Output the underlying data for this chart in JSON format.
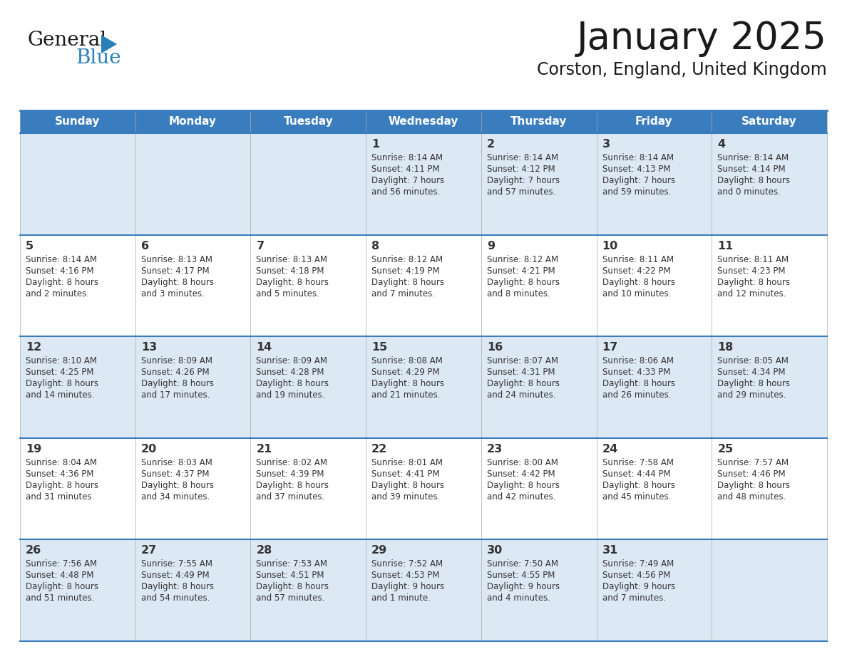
{
  "title": "January 2025",
  "subtitle": "Corston, England, United Kingdom",
  "header_bg_color": "#3a7dbf",
  "header_text_color": "#ffffff",
  "cell_bg_alt": "#dde8f5",
  "cell_bg_norm": "#ffffff",
  "border_color": "#3a7dbf",
  "text_color": "#333333",
  "title_color": "#1a1a1a",
  "logo_general_color": "#1a1a1a",
  "logo_blue_color": "#2980b9",
  "logo_triangle_color": "#2980b9",
  "day_names": [
    "Sunday",
    "Monday",
    "Tuesday",
    "Wednesday",
    "Thursday",
    "Friday",
    "Saturday"
  ],
  "weeks": [
    [
      {
        "day": "",
        "info": ""
      },
      {
        "day": "",
        "info": ""
      },
      {
        "day": "",
        "info": ""
      },
      {
        "day": "1",
        "info": "Sunrise: 8:14 AM\nSunset: 4:11 PM\nDaylight: 7 hours\nand 56 minutes."
      },
      {
        "day": "2",
        "info": "Sunrise: 8:14 AM\nSunset: 4:12 PM\nDaylight: 7 hours\nand 57 minutes."
      },
      {
        "day": "3",
        "info": "Sunrise: 8:14 AM\nSunset: 4:13 PM\nDaylight: 7 hours\nand 59 minutes."
      },
      {
        "day": "4",
        "info": "Sunrise: 8:14 AM\nSunset: 4:14 PM\nDaylight: 8 hours\nand 0 minutes."
      }
    ],
    [
      {
        "day": "5",
        "info": "Sunrise: 8:14 AM\nSunset: 4:16 PM\nDaylight: 8 hours\nand 2 minutes."
      },
      {
        "day": "6",
        "info": "Sunrise: 8:13 AM\nSunset: 4:17 PM\nDaylight: 8 hours\nand 3 minutes."
      },
      {
        "day": "7",
        "info": "Sunrise: 8:13 AM\nSunset: 4:18 PM\nDaylight: 8 hours\nand 5 minutes."
      },
      {
        "day": "8",
        "info": "Sunrise: 8:12 AM\nSunset: 4:19 PM\nDaylight: 8 hours\nand 7 minutes."
      },
      {
        "day": "9",
        "info": "Sunrise: 8:12 AM\nSunset: 4:21 PM\nDaylight: 8 hours\nand 8 minutes."
      },
      {
        "day": "10",
        "info": "Sunrise: 8:11 AM\nSunset: 4:22 PM\nDaylight: 8 hours\nand 10 minutes."
      },
      {
        "day": "11",
        "info": "Sunrise: 8:11 AM\nSunset: 4:23 PM\nDaylight: 8 hours\nand 12 minutes."
      }
    ],
    [
      {
        "day": "12",
        "info": "Sunrise: 8:10 AM\nSunset: 4:25 PM\nDaylight: 8 hours\nand 14 minutes."
      },
      {
        "day": "13",
        "info": "Sunrise: 8:09 AM\nSunset: 4:26 PM\nDaylight: 8 hours\nand 17 minutes."
      },
      {
        "day": "14",
        "info": "Sunrise: 8:09 AM\nSunset: 4:28 PM\nDaylight: 8 hours\nand 19 minutes."
      },
      {
        "day": "15",
        "info": "Sunrise: 8:08 AM\nSunset: 4:29 PM\nDaylight: 8 hours\nand 21 minutes."
      },
      {
        "day": "16",
        "info": "Sunrise: 8:07 AM\nSunset: 4:31 PM\nDaylight: 8 hours\nand 24 minutes."
      },
      {
        "day": "17",
        "info": "Sunrise: 8:06 AM\nSunset: 4:33 PM\nDaylight: 8 hours\nand 26 minutes."
      },
      {
        "day": "18",
        "info": "Sunrise: 8:05 AM\nSunset: 4:34 PM\nDaylight: 8 hours\nand 29 minutes."
      }
    ],
    [
      {
        "day": "19",
        "info": "Sunrise: 8:04 AM\nSunset: 4:36 PM\nDaylight: 8 hours\nand 31 minutes."
      },
      {
        "day": "20",
        "info": "Sunrise: 8:03 AM\nSunset: 4:37 PM\nDaylight: 8 hours\nand 34 minutes."
      },
      {
        "day": "21",
        "info": "Sunrise: 8:02 AM\nSunset: 4:39 PM\nDaylight: 8 hours\nand 37 minutes."
      },
      {
        "day": "22",
        "info": "Sunrise: 8:01 AM\nSunset: 4:41 PM\nDaylight: 8 hours\nand 39 minutes."
      },
      {
        "day": "23",
        "info": "Sunrise: 8:00 AM\nSunset: 4:42 PM\nDaylight: 8 hours\nand 42 minutes."
      },
      {
        "day": "24",
        "info": "Sunrise: 7:58 AM\nSunset: 4:44 PM\nDaylight: 8 hours\nand 45 minutes."
      },
      {
        "day": "25",
        "info": "Sunrise: 7:57 AM\nSunset: 4:46 PM\nDaylight: 8 hours\nand 48 minutes."
      }
    ],
    [
      {
        "day": "26",
        "info": "Sunrise: 7:56 AM\nSunset: 4:48 PM\nDaylight: 8 hours\nand 51 minutes."
      },
      {
        "day": "27",
        "info": "Sunrise: 7:55 AM\nSunset: 4:49 PM\nDaylight: 8 hours\nand 54 minutes."
      },
      {
        "day": "28",
        "info": "Sunrise: 7:53 AM\nSunset: 4:51 PM\nDaylight: 8 hours\nand 57 minutes."
      },
      {
        "day": "29",
        "info": "Sunrise: 7:52 AM\nSunset: 4:53 PM\nDaylight: 9 hours\nand 1 minute."
      },
      {
        "day": "30",
        "info": "Sunrise: 7:50 AM\nSunset: 4:55 PM\nDaylight: 9 hours\nand 4 minutes."
      },
      {
        "day": "31",
        "info": "Sunrise: 7:49 AM\nSunset: 4:56 PM\nDaylight: 9 hours\nand 7 minutes."
      },
      {
        "day": "",
        "info": ""
      }
    ]
  ]
}
